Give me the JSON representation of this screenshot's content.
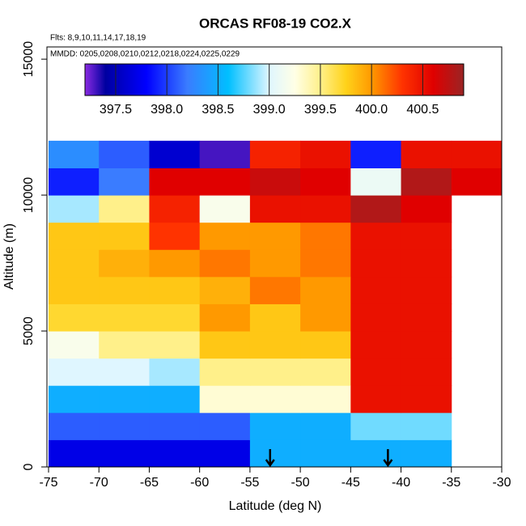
{
  "chart_data": {
    "type": "heatmap",
    "title": "ORCAS RF08-19 CO2.X",
    "annotations": [
      "Flts: 8,9,10,11,14,17,18,19",
      "MMDD: 0205,0208,0210,0212,0218,0224,0225,0229"
    ],
    "x_label": "Latitude (deg N)",
    "y_label": "Altitude (m)",
    "x_bins": [
      -75,
      -70,
      -65,
      -60,
      -55,
      -50,
      -45,
      -40,
      -35,
      -30
    ],
    "y_bins": [
      0,
      1000,
      2000,
      3000,
      4000,
      5000,
      6000,
      7000,
      8000,
      9000,
      10000,
      11000,
      12000
    ],
    "values": [
      [
        397.7,
        397.7,
        397.7,
        397.7,
        398.5,
        398.5,
        398.5,
        398.5,
        null
      ],
      [
        398.1,
        398.1,
        398.1,
        398.1,
        398.5,
        398.5,
        398.8,
        398.8,
        null
      ],
      [
        398.5,
        398.5,
        398.5,
        399.3,
        399.3,
        399.3,
        400.5,
        400.5,
        null
      ],
      [
        399.0,
        399.0,
        398.9,
        399.5,
        399.5,
        399.5,
        400.5,
        400.5,
        null
      ],
      [
        399.2,
        399.5,
        399.5,
        399.8,
        399.8,
        399.8,
        400.5,
        400.5,
        null
      ],
      [
        399.7,
        399.7,
        399.7,
        400.0,
        399.8,
        400.0,
        400.5,
        400.5,
        null
      ],
      [
        399.8,
        399.8,
        399.8,
        399.9,
        400.1,
        400.0,
        400.5,
        400.5,
        null
      ],
      [
        399.8,
        399.9,
        400.0,
        400.1,
        400.0,
        400.1,
        400.5,
        400.5,
        null
      ],
      [
        399.8,
        399.8,
        400.3,
        400.0,
        400.0,
        400.1,
        400.5,
        400.5,
        null
      ],
      [
        398.9,
        399.5,
        400.4,
        399.2,
        400.5,
        400.5,
        400.8,
        400.6,
        null
      ],
      [
        397.9,
        398.2,
        400.6,
        400.6,
        400.7,
        400.6,
        399.1,
        400.8,
        400.6
      ],
      [
        398.3,
        398.1,
        397.6,
        397.3,
        400.4,
        400.5,
        397.9,
        400.5,
        400.5
      ]
    ],
    "markers_x": [
      -53,
      -41.3
    ],
    "xlim": [
      -75,
      -30
    ],
    "ylim": [
      0,
      15450
    ],
    "xticks": [
      -75,
      -70,
      -65,
      -60,
      -55,
      -50,
      -45,
      -40,
      -35,
      -30
    ],
    "yticks": [
      0,
      5000,
      10000,
      15000
    ],
    "colorbar_lim": [
      397.2,
      400.9
    ],
    "colorbar_ticks": [
      397.5,
      {
        "value": 398,
        "label": "398.0"
      },
      398.5,
      {
        "value": 399,
        "label": "399.0"
      },
      399.5,
      {
        "value": 400,
        "label": "400.0"
      },
      400.5
    ],
    "colorscale": [
      [
        397.2,
        "#8a2be2"
      ],
      [
        397.4,
        "#0000a0"
      ],
      [
        397.8,
        "#0000ff"
      ],
      [
        398.2,
        "#3a7cff"
      ],
      [
        398.6,
        "#00bfff"
      ],
      [
        399.0,
        "#dff6ff"
      ],
      [
        399.25,
        "#ffffe6"
      ],
      [
        399.5,
        "#fff08a"
      ],
      [
        399.75,
        "#ffd21a"
      ],
      [
        400.0,
        "#ff9900"
      ],
      [
        400.3,
        "#ff3300"
      ],
      [
        400.6,
        "#e00000"
      ],
      [
        400.9,
        "#9a2424"
      ]
    ]
  }
}
